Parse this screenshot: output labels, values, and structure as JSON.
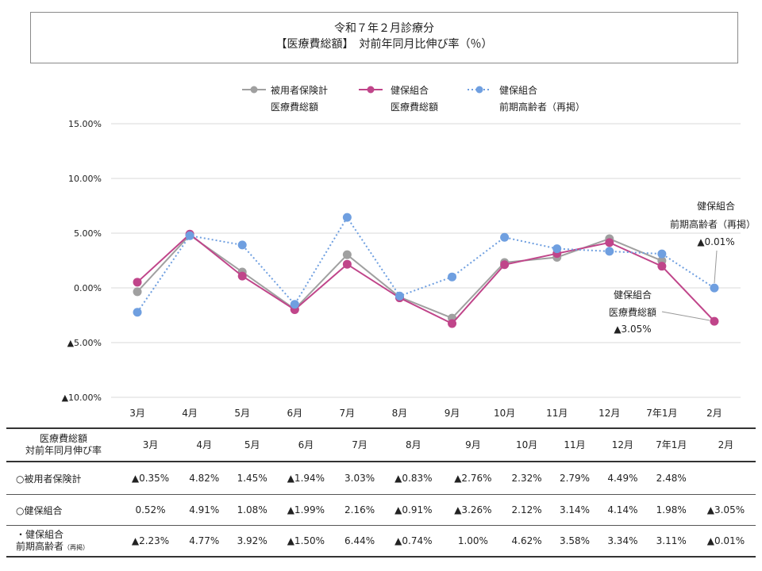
{
  "title": {
    "line1": "令和７年２月診療分",
    "line2": "【医療費総額】　対前年同月比伸び率（％）"
  },
  "legend": [
    {
      "name_line1": "被用者保険計",
      "name_line2": "医療費総額",
      "color": "#a0a0a0",
      "style": "solid"
    },
    {
      "name_line1": "健保組合",
      "name_line2": "医療費総額",
      "color": "#c0458a",
      "style": "solid"
    },
    {
      "name_line1": "健保組合",
      "name_line2": "前期高齢者（再掲）",
      "color": "#6f9fe0",
      "style": "dotted"
    }
  ],
  "annotations": {
    "kenpo_elderly": {
      "line1": "健保組合",
      "line2": "前期高齢者（再掲）",
      "line3": "▲0.01%"
    },
    "kenpo_total": {
      "line1": "健保組合",
      "line2": "医療費総額",
      "line3": "▲3.05%"
    }
  },
  "chart_data": {
    "type": "line",
    "categories": [
      "3月",
      "4月",
      "5月",
      "6月",
      "7月",
      "8月",
      "9月",
      "10月",
      "11月",
      "12月",
      "7年1月",
      "2月"
    ],
    "y_tick_labels": [
      "15.00%",
      "10.00%",
      "5.00%",
      "0.00%",
      "▲5.00%",
      "▲10.00%"
    ],
    "y_ticks": [
      15,
      10,
      5,
      0,
      -5,
      -10
    ],
    "ylim": [
      -10,
      15
    ],
    "grid": true,
    "legend_position": "top-center",
    "series": [
      {
        "name": "被用者保険計 医療費総額",
        "color": "#a0a0a0",
        "style": "solid",
        "values": [
          -0.35,
          4.82,
          1.45,
          -1.94,
          3.03,
          -0.83,
          -2.76,
          2.32,
          2.79,
          4.49,
          2.48,
          null
        ]
      },
      {
        "name": "健保組合 医療費総額",
        "color": "#c0458a",
        "style": "solid",
        "values": [
          0.52,
          4.91,
          1.08,
          -1.99,
          2.16,
          -0.91,
          -3.26,
          2.12,
          3.14,
          4.14,
          1.98,
          -3.05
        ]
      },
      {
        "name": "健保組合 前期高齢者（再掲）",
        "color": "#6f9fe0",
        "style": "dotted",
        "values": [
          -2.23,
          4.77,
          3.92,
          -1.5,
          6.44,
          -0.74,
          1.0,
          4.62,
          3.58,
          3.34,
          3.11,
          -0.01
        ]
      }
    ]
  },
  "table": {
    "header_label_line1": "医療費総額",
    "header_label_line2": "対前年同月伸び率",
    "columns": [
      "3月",
      "4月",
      "5月",
      "6月",
      "7月",
      "8月",
      "9月",
      "10月",
      "11月",
      "12月",
      "7年1月",
      "2月"
    ],
    "rows": [
      {
        "label_line1": "○被用者保険計",
        "label_line2": "",
        "label_small": "",
        "cells": [
          "▲0.35%",
          "4.82%",
          "1.45%",
          "▲1.94%",
          "3.03%",
          "▲0.83%",
          "▲2.76%",
          "2.32%",
          "2.79%",
          "4.49%",
          "2.48%",
          ""
        ]
      },
      {
        "label_line1": "○健保組合",
        "label_line2": "",
        "label_small": "",
        "cells": [
          "0.52%",
          "4.91%",
          "1.08%",
          "▲1.99%",
          "2.16%",
          "▲0.91%",
          "▲3.26%",
          "2.12%",
          "3.14%",
          "4.14%",
          "1.98%",
          "▲3.05%"
        ]
      },
      {
        "label_line1": "・健保組合",
        "label_line2": "前期高齢者",
        "label_small": "（再掲）",
        "cells": [
          "▲2.23%",
          "4.77%",
          "3.92%",
          "▲1.50%",
          "6.44%",
          "▲0.74%",
          "1.00%",
          "4.62%",
          "3.58%",
          "3.34%",
          "3.11%",
          "▲0.01%"
        ]
      }
    ]
  }
}
